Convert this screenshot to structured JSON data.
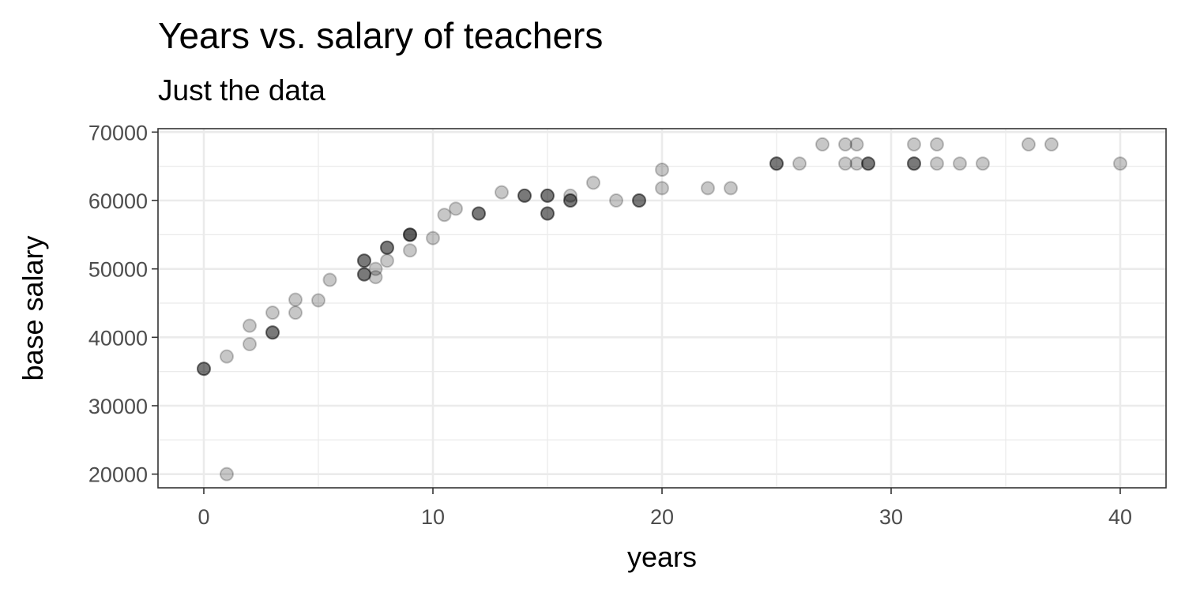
{
  "chart_data": {
    "type": "scatter",
    "title": "Years vs. salary of teachers",
    "subtitle": "Just the data",
    "xlabel": "years",
    "ylabel": "base salary",
    "xlim": [
      -2,
      42
    ],
    "ylim": [
      18000,
      70500
    ],
    "xticks": [
      0,
      10,
      20,
      30,
      40
    ],
    "xtick_labels": [
      "0",
      "10",
      "20",
      "30",
      "40"
    ],
    "yticks": [
      20000,
      30000,
      40000,
      50000,
      60000,
      70000
    ],
    "ytick_labels": [
      "20000",
      "30000",
      "40000",
      "50000",
      "60000",
      "70000"
    ],
    "grid": true,
    "point_color": "#000000",
    "point_opacity": 0.22,
    "panel_border": "#333333",
    "grid_color": "#ebebeb",
    "points": [
      {
        "x": 0,
        "y": 35400
      },
      {
        "x": 0,
        "y": 35400
      },
      {
        "x": 0,
        "y": 35400
      },
      {
        "x": 1,
        "y": 37200
      },
      {
        "x": 1,
        "y": 20000
      },
      {
        "x": 2,
        "y": 41700
      },
      {
        "x": 2,
        "y": 39000
      },
      {
        "x": 3,
        "y": 43600
      },
      {
        "x": 3,
        "y": 40700
      },
      {
        "x": 3,
        "y": 40700
      },
      {
        "x": 3,
        "y": 40700
      },
      {
        "x": 4,
        "y": 45500
      },
      {
        "x": 4,
        "y": 43600
      },
      {
        "x": 5,
        "y": 45400
      },
      {
        "x": 5.5,
        "y": 48400
      },
      {
        "x": 7,
        "y": 51200
      },
      {
        "x": 7,
        "y": 51200
      },
      {
        "x": 7,
        "y": 51200
      },
      {
        "x": 7,
        "y": 49200
      },
      {
        "x": 7,
        "y": 49200
      },
      {
        "x": 7,
        "y": 49200
      },
      {
        "x": 7.5,
        "y": 50000
      },
      {
        "x": 7.5,
        "y": 48800
      },
      {
        "x": 8,
        "y": 53100
      },
      {
        "x": 8,
        "y": 53100
      },
      {
        "x": 8,
        "y": 53100
      },
      {
        "x": 8,
        "y": 51200
      },
      {
        "x": 9,
        "y": 55000
      },
      {
        "x": 9,
        "y": 55000
      },
      {
        "x": 9,
        "y": 55000
      },
      {
        "x": 9,
        "y": 55000
      },
      {
        "x": 9,
        "y": 52700
      },
      {
        "x": 10,
        "y": 54500
      },
      {
        "x": 10.5,
        "y": 57900
      },
      {
        "x": 11,
        "y": 58800
      },
      {
        "x": 12,
        "y": 58100
      },
      {
        "x": 12,
        "y": 58100
      },
      {
        "x": 12,
        "y": 58100
      },
      {
        "x": 13,
        "y": 61200
      },
      {
        "x": 14,
        "y": 60700
      },
      {
        "x": 14,
        "y": 60700
      },
      {
        "x": 14,
        "y": 60700
      },
      {
        "x": 15,
        "y": 60700
      },
      {
        "x": 15,
        "y": 60700
      },
      {
        "x": 15,
        "y": 60700
      },
      {
        "x": 15,
        "y": 58100
      },
      {
        "x": 15,
        "y": 58100
      },
      {
        "x": 15,
        "y": 58100
      },
      {
        "x": 16,
        "y": 60700
      },
      {
        "x": 16,
        "y": 60000
      },
      {
        "x": 16,
        "y": 60000
      },
      {
        "x": 16,
        "y": 60000
      },
      {
        "x": 17,
        "y": 62600
      },
      {
        "x": 18,
        "y": 60000
      },
      {
        "x": 19,
        "y": 60000
      },
      {
        "x": 19,
        "y": 60000
      },
      {
        "x": 19,
        "y": 60000
      },
      {
        "x": 20,
        "y": 64500
      },
      {
        "x": 20,
        "y": 61800
      },
      {
        "x": 22,
        "y": 61800
      },
      {
        "x": 23,
        "y": 61800
      },
      {
        "x": 25,
        "y": 65400
      },
      {
        "x": 25,
        "y": 65400
      },
      {
        "x": 25,
        "y": 65400
      },
      {
        "x": 26,
        "y": 65400
      },
      {
        "x": 27,
        "y": 68200
      },
      {
        "x": 28,
        "y": 68200
      },
      {
        "x": 28,
        "y": 65400
      },
      {
        "x": 28.5,
        "y": 68200
      },
      {
        "x": 28.5,
        "y": 65400
      },
      {
        "x": 29,
        "y": 65400
      },
      {
        "x": 29,
        "y": 65400
      },
      {
        "x": 29,
        "y": 65400
      },
      {
        "x": 31,
        "y": 68200
      },
      {
        "x": 31,
        "y": 65400
      },
      {
        "x": 31,
        "y": 65400
      },
      {
        "x": 31,
        "y": 65400
      },
      {
        "x": 32,
        "y": 68200
      },
      {
        "x": 32,
        "y": 65400
      },
      {
        "x": 33,
        "y": 65400
      },
      {
        "x": 34,
        "y": 65400
      },
      {
        "x": 36,
        "y": 68200
      },
      {
        "x": 37,
        "y": 68200
      },
      {
        "x": 40,
        "y": 65400
      }
    ]
  }
}
